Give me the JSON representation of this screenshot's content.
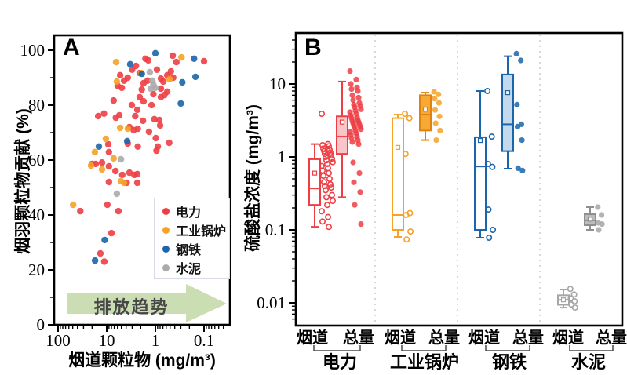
{
  "figure": {
    "panel_a_label": "A",
    "panel_b_label": "B",
    "arrow_text": "排放趋势",
    "arrow_color": "#CBDDB2",
    "separator_color": "#BDBDBD",
    "frame_color": "#000000"
  },
  "chart_data": [
    {
      "type": "scatter",
      "panel": "A",
      "xlabel": "烟道颗粒物 (mg/m³)",
      "ylabel": "烟羽颗粒物贡献 (%)",
      "x_scale": "log-reversed",
      "xlim": [
        120,
        0.03
      ],
      "ylim": [
        0,
        105
      ],
      "x_ticks": [
        100,
        10,
        1,
        0.1
      ],
      "x_tick_labels": [
        "100",
        "10",
        "1",
        "0.1"
      ],
      "y_ticks": [
        0,
        20,
        40,
        60,
        80,
        100
      ],
      "y_tick_labels": [
        "0",
        "20",
        "40",
        "60",
        "80",
        "100"
      ],
      "y_minor_ticks": [
        10,
        30,
        50,
        70,
        90
      ],
      "grid": false,
      "legend_position": "lower-right-inside",
      "annotation": {
        "type": "arrow-right",
        "text": "排放趋势"
      },
      "series": [
        {
          "name": "电力",
          "color": "#ED3E45",
          "points": [
            [
              0.44,
              98
            ],
            [
              1.6,
              96.9
            ],
            [
              1.4,
              96.3
            ],
            [
              0.37,
              95.7
            ],
            [
              0.1,
              96
            ],
            [
              2.5,
              94.3
            ],
            [
              3.0,
              92.9
            ],
            [
              0.93,
              92.9
            ],
            [
              2.1,
              91.7
            ],
            [
              5.3,
              90.9
            ],
            [
              0.48,
              92.3
            ],
            [
              0.57,
              90.9
            ],
            [
              3.7,
              90
            ],
            [
              0.77,
              89.7
            ],
            [
              0.43,
              90
            ],
            [
              4.4,
              88.9
            ],
            [
              1.45,
              88.9
            ],
            [
              0.69,
              88.6
            ],
            [
              6.0,
              87.1
            ],
            [
              1.75,
              88
            ],
            [
              4.9,
              86.3
            ],
            [
              0.77,
              86
            ],
            [
              1.9,
              85.7
            ],
            [
              0.57,
              84.9
            ],
            [
              1.1,
              84
            ],
            [
              0.65,
              83.7
            ],
            [
              2.1,
              82.9
            ],
            [
              1.75,
              81.4
            ],
            [
              0.77,
              82.9
            ],
            [
              3.05,
              80
            ],
            [
              1.2,
              80
            ],
            [
              2.35,
              78.3
            ],
            [
              7.2,
              81.7
            ],
            [
              15,
              76
            ],
            [
              11.4,
              76.9
            ],
            [
              5.5,
              76.3
            ],
            [
              6.5,
              75.4
            ],
            [
              2.6,
              76
            ],
            [
              1.8,
              74.3
            ],
            [
              0.83,
              74.6
            ],
            [
              1.05,
              74.9
            ],
            [
              0.8,
              72.6
            ],
            [
              3.4,
              72
            ],
            [
              2.3,
              71.4
            ],
            [
              2.8,
              70.9
            ],
            [
              1.35,
              70.3
            ],
            [
              0.98,
              68
            ],
            [
              9.3,
              65.7
            ],
            [
              3.7,
              66
            ],
            [
              2.3,
              64.9
            ],
            [
              0.89,
              64.9
            ],
            [
              9.0,
              62.9
            ],
            [
              0.95,
              63.4
            ],
            [
              0.52,
              66.3
            ],
            [
              20,
              58.6
            ],
            [
              16.8,
              58.6
            ],
            [
              12.5,
              59.1
            ],
            [
              9.0,
              57.7
            ],
            [
              6.6,
              56
            ],
            [
              4.8,
              54.6
            ],
            [
              3.4,
              55.4
            ],
            [
              2.7,
              54.6
            ],
            [
              2.35,
              54.9
            ],
            [
              9.0,
              52
            ],
            [
              3.9,
              51.7
            ],
            [
              2.35,
              51.7
            ],
            [
              9.7,
              43.7
            ],
            [
              5.75,
              41.4
            ],
            [
              35,
              41.4
            ],
            [
              8.0,
              33.4
            ],
            [
              13.5,
              26
            ],
            [
              11.2,
              23
            ]
          ]
        },
        {
          "name": "工业锅炉",
          "color": "#F5A226",
          "points": [
            [
              6.4,
              95.7
            ],
            [
              0.29,
              97.4
            ],
            [
              6.2,
              88.6
            ],
            [
              0.51,
              89.4
            ],
            [
              1.95,
              91.7
            ],
            [
              5.3,
              71.7
            ],
            [
              3.7,
              71.4
            ],
            [
              10.4,
              67.7
            ],
            [
              17.5,
              62.9
            ],
            [
              21,
              58
            ],
            [
              12.5,
              56.6
            ],
            [
              7.2,
              60.6
            ],
            [
              49,
              43.7
            ],
            [
              5.1,
              52.3
            ],
            [
              4.4,
              51.7
            ]
          ]
        },
        {
          "name": "钢铁",
          "color": "#1A65AB",
          "points": [
            [
              1.0,
              98.9
            ],
            [
              0.16,
              96.9
            ],
            [
              3.3,
              94.9
            ],
            [
              1.9,
              91.4
            ],
            [
              0.15,
              90.3
            ],
            [
              0.28,
              88.3
            ],
            [
              0.3,
              80.6
            ],
            [
              3.8,
              66.9
            ],
            [
              14.5,
              64.9
            ],
            [
              11,
              30.9
            ],
            [
              17.4,
              23.4
            ]
          ]
        },
        {
          "name": "水泥",
          "color": "#ABABAB",
          "points": [
            [
              1.3,
              92
            ],
            [
              1.15,
              88.9
            ],
            [
              1.1,
              87.4
            ],
            [
              1.0,
              86.3
            ],
            [
              1.25,
              86
            ],
            [
              5.1,
              60.3
            ],
            [
              6.2,
              47.7
            ]
          ]
        }
      ]
    },
    {
      "type": "box-scatter",
      "panel": "B",
      "ylabel": "硫酸盐浓度 (mg/m³)",
      "y_scale": "log",
      "ylim": [
        0.005,
        50
      ],
      "y_ticks": [
        10,
        1,
        0.1,
        0.01
      ],
      "y_tick_labels": [
        "10",
        "1",
        "0.1",
        "0.01"
      ],
      "grid": false,
      "groups": [
        {
          "name": "电力",
          "color": "#ED3E45",
          "box_fill": "#F9C5C8",
          "subgroups": [
            {
              "label": "烟道",
              "style": "open",
              "box": {
                "low": 0.11,
                "q1": 0.22,
                "median": 0.37,
                "mean": 0.6,
                "q3": 0.93,
                "high": 1.5
              },
              "points": [
                3.9,
                1.5,
                1.45,
                1.4,
                1.3,
                1.25,
                1.2,
                1.15,
                1.1,
                1.05,
                1.0,
                0.95,
                0.9,
                0.85,
                0.8,
                0.75,
                0.7,
                0.65,
                0.6,
                0.55,
                0.5,
                0.45,
                0.42,
                0.4,
                0.38,
                0.35,
                0.3,
                0.28,
                0.25,
                0.22,
                0.18,
                0.15,
                0.13,
                0.11
              ]
            },
            {
              "label": "总量",
              "style": "filled",
              "box": {
                "low": 0.28,
                "q1": 1.1,
                "median": 1.9,
                "mean": 3.0,
                "q3": 3.6,
                "high": 10.8
              },
              "points": [
                15,
                11.5,
                10,
                9,
                8.5,
                8,
                7,
                6.5,
                6,
                5.5,
                5.2,
                5,
                4.8,
                4.5,
                4.3,
                4.1,
                3.9,
                3.7,
                3.5,
                3.4,
                3.2,
                3.1,
                3.0,
                2.9,
                2.8,
                2.7,
                2.6,
                2.5,
                2.4,
                2.3,
                2.2,
                2.1,
                2.0,
                1.9,
                1.8,
                1.7,
                1.6,
                1.5,
                0.84,
                0.6,
                0.45,
                0.33,
                0.22,
                0.12
              ]
            }
          ]
        },
        {
          "name": "工业锅炉",
          "color": "#F5A226",
          "box_fill": "#F7A937",
          "edge": "#E0820B",
          "subgroups": [
            {
              "label": "烟道",
              "style": "open",
              "box": {
                "low": 0.08,
                "q1": 0.1,
                "median": 0.16,
                "mean": 1.35,
                "q3": 3.4,
                "high": 3.8
              },
              "points": [
                3.9,
                3.4,
                1.1,
                0.17,
                0.16,
                0.095,
                0.074
              ]
            },
            {
              "label": "总量",
              "style": "filled",
              "box": {
                "low": 1.7,
                "q1": 2.3,
                "median": 3.8,
                "mean": 4.5,
                "q3": 7.0,
                "high": 7.6
              },
              "points": [
                7.8,
                7.2,
                6.3,
                5.5,
                4.4,
                3.6,
                2.9,
                2.3,
                1.7
              ]
            }
          ]
        },
        {
          "name": "钢铁",
          "color": "#1A65AB",
          "box_fill": "#C4DAEC",
          "subgroups": [
            {
              "label": "烟道",
              "style": "open",
              "box": {
                "low": 0.078,
                "q1": 0.1,
                "median": 0.74,
                "mean": 1.68,
                "q3": 1.86,
                "high": 8.0
              },
              "points": [
                8.0,
                1.9,
                0.8,
                0.73,
                0.19,
                0.1,
                0.078
              ]
            },
            {
              "label": "总量",
              "style": "filled",
              "box": {
                "low": 0.69,
                "q1": 1.2,
                "median": 2.8,
                "mean": 7.6,
                "q3": 13.5,
                "high": 24
              },
              "points": [
                26,
                21,
                5.2,
                2.8,
                2.6,
                1.7,
                0.7,
                0.65
              ]
            }
          ]
        },
        {
          "name": "水泥",
          "color": "#A6A6A6",
          "box_fill": "#BDBDBD",
          "edge": "#8F8F8F",
          "subgroups": [
            {
              "label": "烟道",
              "style": "open",
              "box": {
                "low": 0.0086,
                "q1": 0.0094,
                "median": 0.011,
                "mean": 0.011,
                "q3": 0.0127,
                "high": 0.0152
              },
              "points": [
                0.0155,
                0.013,
                0.0115,
                0.0105,
                0.0095,
                0.0086
              ]
            },
            {
              "label": "总量",
              "style": "filled",
              "box": {
                "low": 0.1,
                "q1": 0.116,
                "median": 0.135,
                "mean": 0.14,
                "q3": 0.164,
                "high": 0.205
              },
              "points": [
                0.205,
                0.16,
                0.125,
                0.12,
                0.1
              ]
            }
          ]
        }
      ]
    }
  ]
}
